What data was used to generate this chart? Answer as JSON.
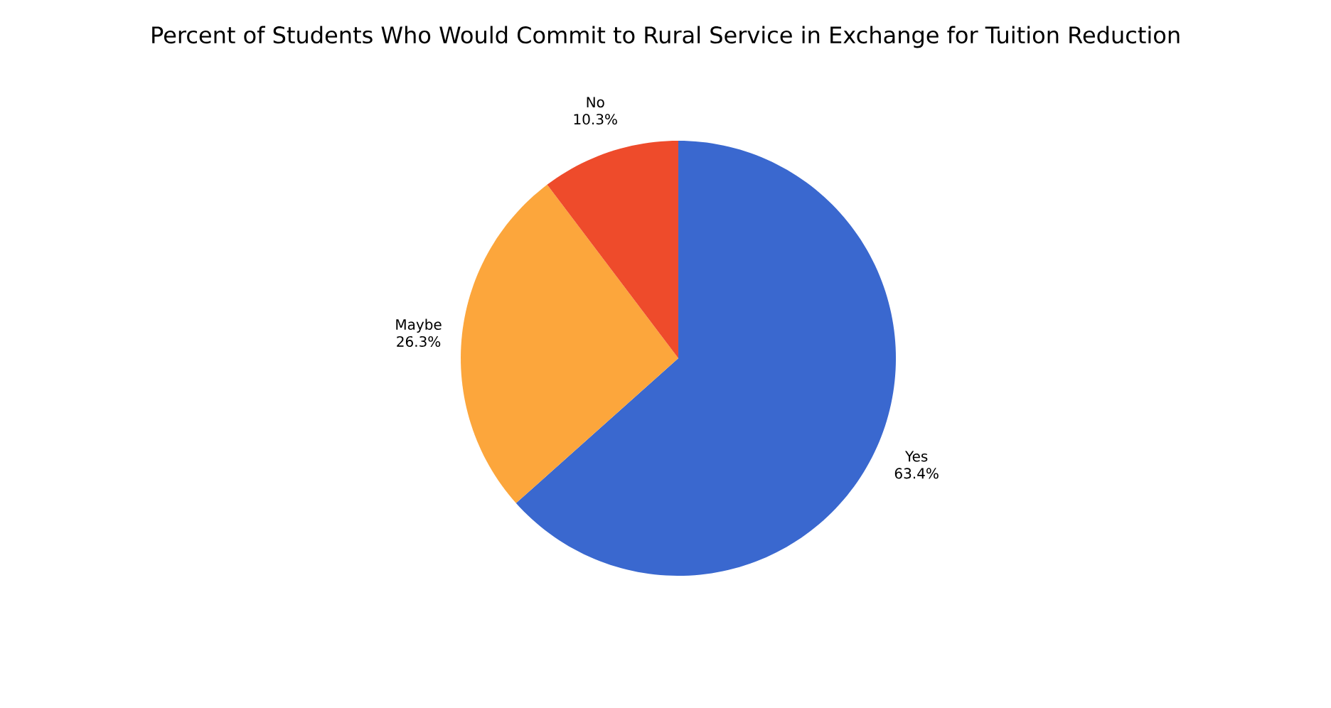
{
  "chart_data": {
    "type": "pie",
    "title": "Percent of Students Who Would Commit to Rural Service in Exchange for Tuition Reduction",
    "categories": [
      "Yes",
      "Maybe",
      "No"
    ],
    "values": [
      63.4,
      26.3,
      10.3
    ],
    "value_labels": [
      "63.4%",
      "26.3%",
      "10.3%"
    ],
    "colors": [
      "#3a68cf",
      "#fca63c",
      "#ee4b2b"
    ]
  }
}
